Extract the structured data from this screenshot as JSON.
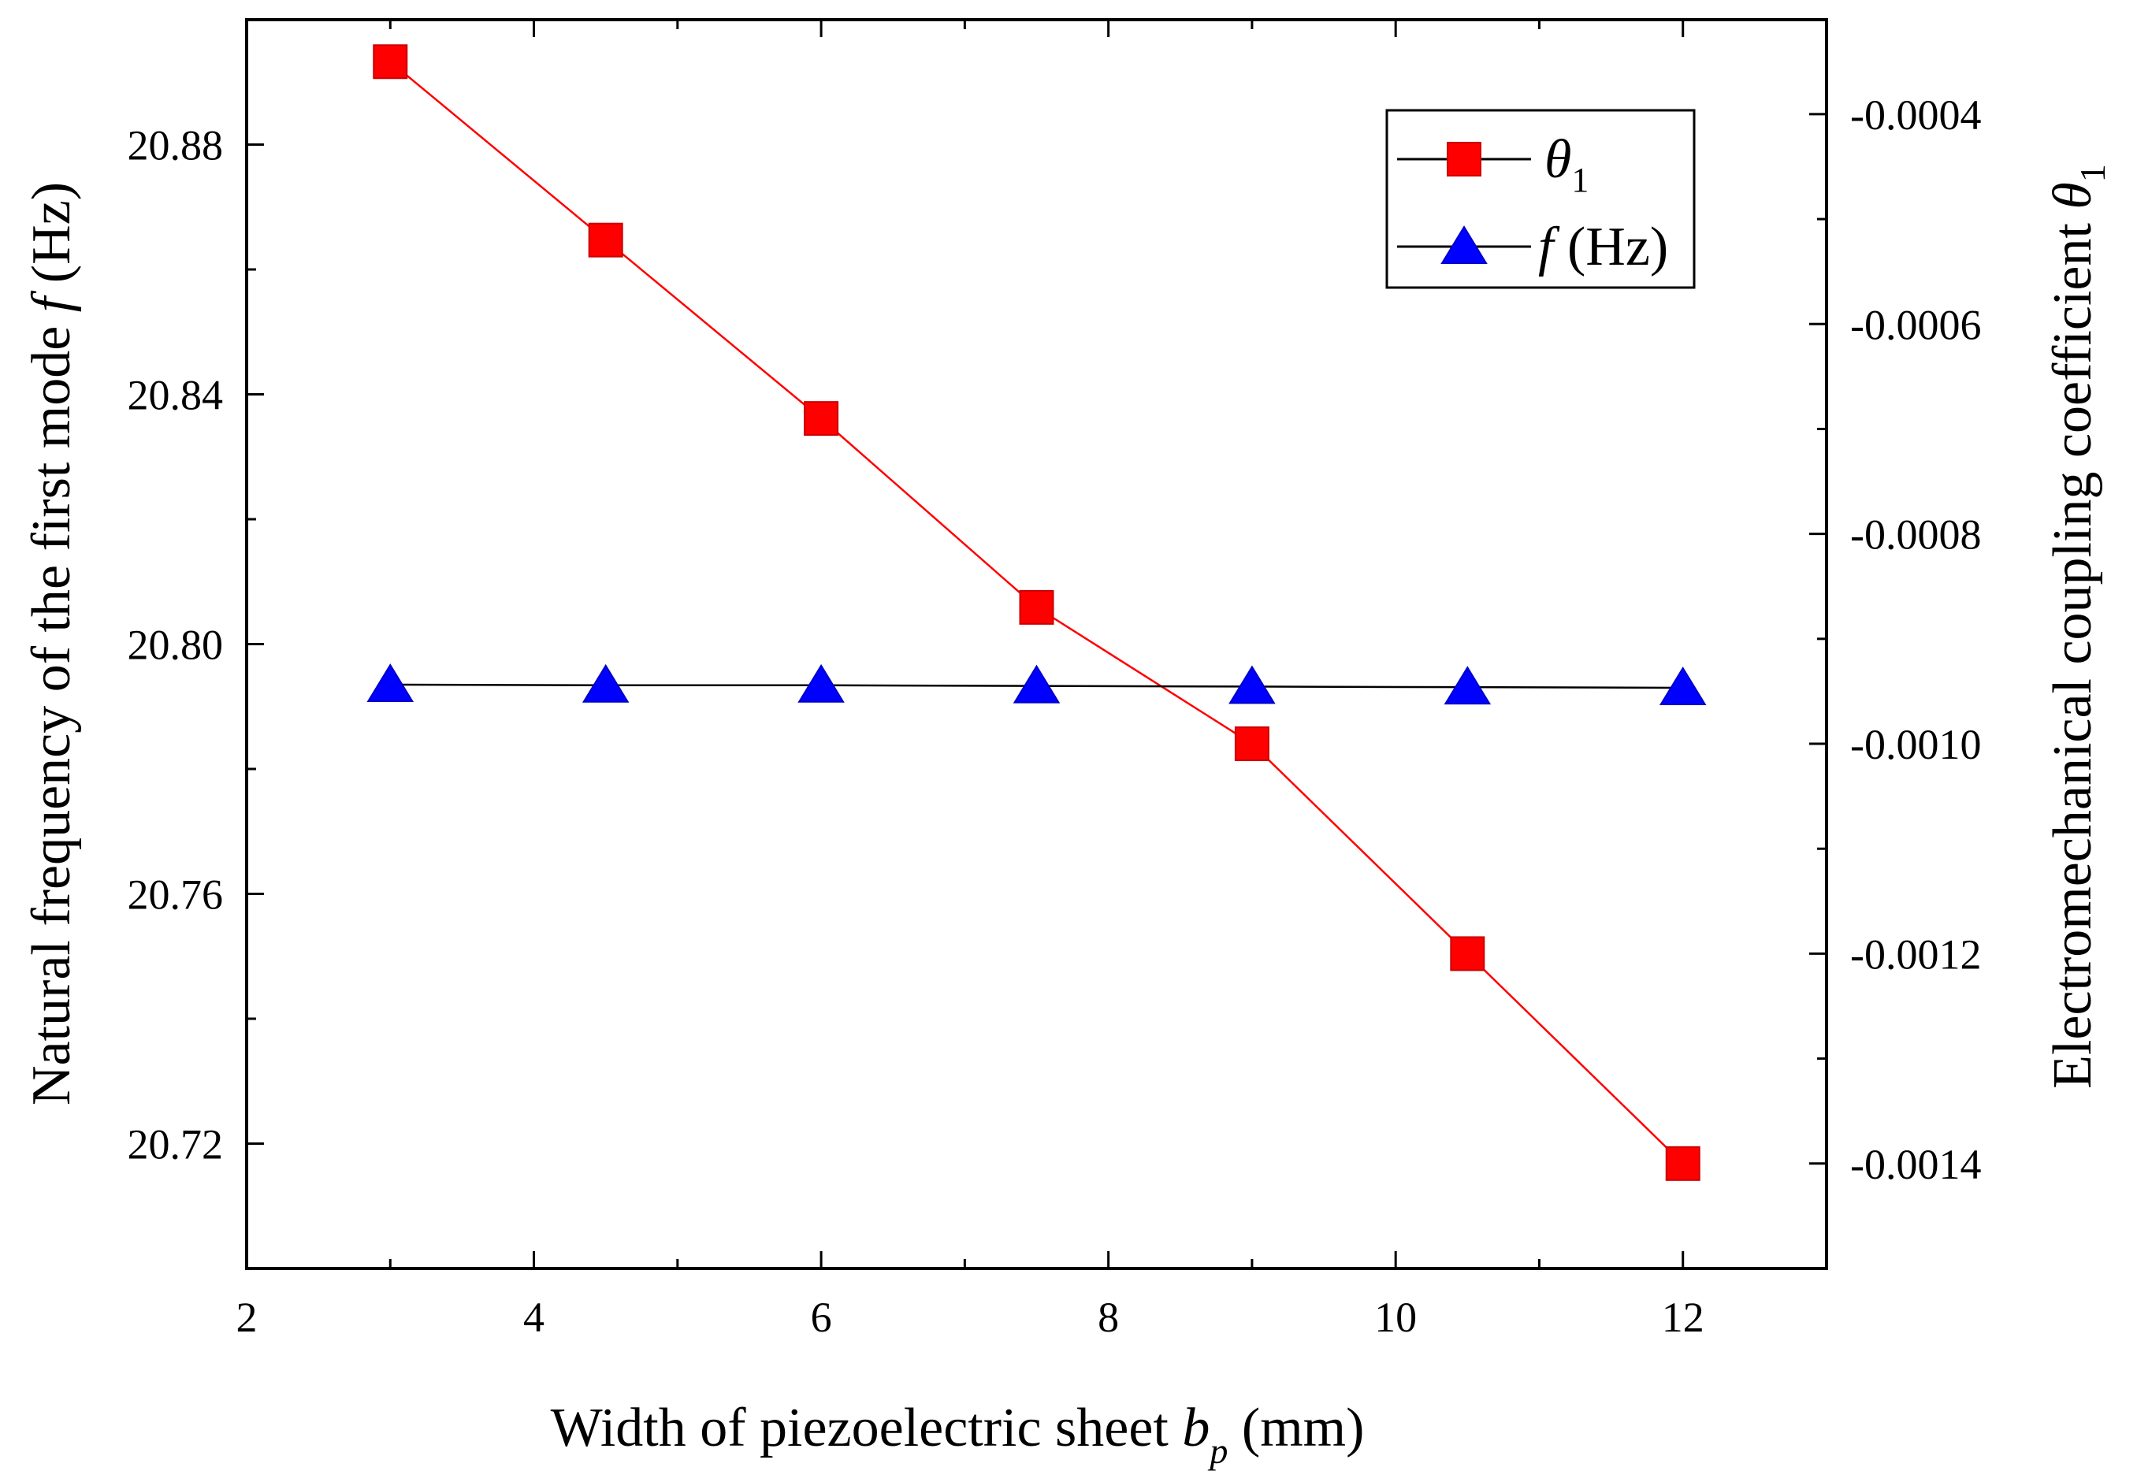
{
  "chart_data": {
    "type": "line",
    "x": [
      3,
      4.5,
      6,
      7.5,
      9,
      10.5,
      12
    ],
    "xlim": [
      2,
      13
    ],
    "xticks": [
      2,
      4,
      6,
      8,
      10,
      12
    ],
    "xtick_labels": [
      "2",
      "4",
      "6",
      "8",
      "10",
      "12"
    ],
    "xlabel": {
      "main": "Width of piezoelectric sheet ",
      "var": "b",
      "sub": "p",
      "unit": " (mm)"
    },
    "y_left": {
      "label": {
        "main": "Natural frequency of the first mode ",
        "var": "f",
        "unit": " (Hz)"
      },
      "ylim": [
        20.7,
        20.9
      ],
      "ticks": [
        20.72,
        20.76,
        20.8,
        20.84,
        20.88
      ],
      "tick_labels": [
        "20.72",
        "20.76",
        "20.80",
        "20.84",
        "20.88"
      ]
    },
    "y_right": {
      "label": {
        "main": "Electromechanical coupling coefficient ",
        "var": "θ",
        "sub": "1"
      },
      "ylim": [
        -0.0015,
        -0.00031
      ],
      "ticks": [
        -0.0004,
        -0.0006,
        -0.0008,
        -0.001,
        -0.0012,
        -0.0014
      ],
      "tick_labels": [
        "-0.0004",
        "-0.0006",
        "-0.0008",
        "-0.0010",
        "-0.0012",
        "-0.0014"
      ]
    },
    "series": [
      {
        "name": "θ1",
        "legend_var": "θ",
        "legend_sub": "1",
        "axis": "right",
        "marker": "square",
        "color": "#ff0000",
        "line_color": "#ff0000",
        "values": [
          -0.00035,
          -0.00052,
          -0.00069,
          -0.00087,
          -0.001,
          -0.0012,
          -0.0014
        ]
      },
      {
        "name": "f (Hz)",
        "legend_var": "f",
        "legend_rest": " (Hz)",
        "axis": "left",
        "marker": "triangle",
        "color": "#0000ff",
        "line_color": "#000000",
        "values": [
          20.7935,
          20.7934,
          20.7934,
          20.7933,
          20.7932,
          20.7931,
          20.793
        ]
      }
    ],
    "legend_position": "top-right"
  }
}
